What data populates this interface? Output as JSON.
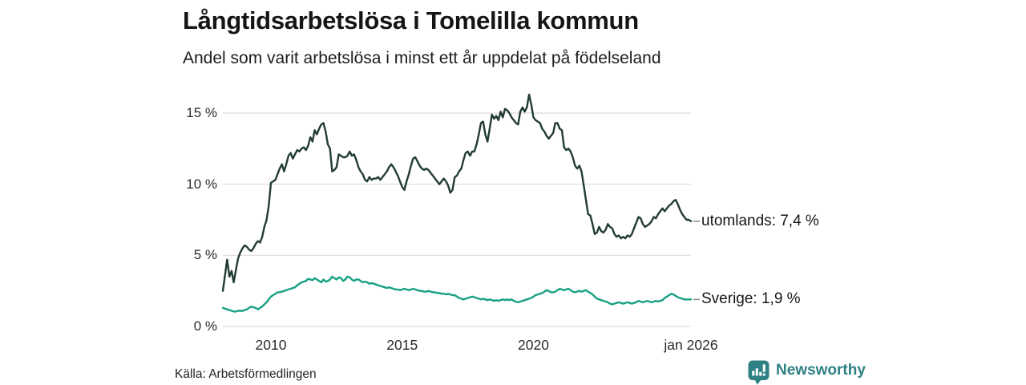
{
  "header": {
    "title": "Långtidsarbetslösa i Tomelilla kommun",
    "subtitle": "Andel som varit arbetslösa i minst ett år uppdelat på födelseland"
  },
  "footer": {
    "source": "Källa: Arbetsförmedlingen",
    "brand_name": "Newsworthy",
    "brand_color": "#2e8083",
    "brand_icon": "bar-chart-speech-bubble-icon"
  },
  "chart_data": {
    "type": "line",
    "title": "Långtidsarbetslösa i Tomelilla kommun",
    "subtitle": "Andel som varit arbetslösa i minst ett år uppdelat på födelseland",
    "grid": true,
    "grid_color": "#dcdcdc",
    "leader_dash_color": "#8f8f8f",
    "x_axis": {
      "range": [
        2008.167,
        2026.0
      ],
      "ticks": [
        {
          "label": "2010",
          "year": 2010.0
        },
        {
          "label": "2015",
          "year": 2015.0
        },
        {
          "label": "2020",
          "year": 2020.0
        },
        {
          "label": "jan 2026",
          "year": 2026.0
        }
      ]
    },
    "y_axis": {
      "unit": "%",
      "range": [
        0,
        16.5
      ],
      "ticks": [
        {
          "label": "15 %",
          "value": 15
        },
        {
          "label": "10 %",
          "value": 10
        },
        {
          "label": "5 %",
          "value": 5
        },
        {
          "label": "0 %",
          "value": 0
        }
      ]
    },
    "series": [
      {
        "name": "utomlands",
        "end_label": "utomlands: 7,4 %",
        "latest_value_text": "7,4 %",
        "color": "#223c35",
        "start_year": 2008.1667,
        "step_years": 0.0833333,
        "values": [
          2.5,
          3.6,
          4.7,
          3.5,
          3.9,
          3.1,
          4.0,
          4.8,
          5.2,
          5.5,
          5.7,
          5.6,
          5.4,
          5.3,
          5.5,
          5.8,
          6.0,
          5.9,
          6.3,
          7.0,
          7.5,
          8.5,
          10.1,
          10.2,
          10.3,
          10.7,
          11.1,
          11.4,
          10.9,
          11.4,
          12.0,
          12.2,
          11.8,
          12.1,
          12.4,
          12.3,
          12.5,
          12.6,
          12.4,
          12.7,
          13.3,
          13.0,
          13.8,
          13.5,
          13.9,
          14.2,
          14.3,
          13.7,
          12.8,
          12.5,
          10.9,
          11.0,
          11.2,
          12.1,
          12.0,
          11.9,
          11.9,
          12.0,
          12.3,
          12.0,
          12.1,
          11.7,
          11.2,
          10.9,
          10.7,
          10.3,
          10.2,
          10.5,
          10.3,
          10.4,
          10.4,
          10.5,
          10.3,
          10.5,
          10.7,
          10.9,
          11.2,
          11.4,
          11.2,
          10.9,
          10.6,
          10.2,
          9.8,
          9.6,
          10.2,
          10.7,
          11.3,
          11.8,
          11.9,
          11.6,
          11.3,
          11.1,
          11.0,
          11.1,
          11.0,
          10.8,
          10.6,
          10.4,
          10.2,
          10.0,
          10.2,
          10.4,
          10.2,
          9.9,
          9.4,
          9.6,
          10.5,
          10.6,
          10.9,
          11.1,
          11.7,
          12.2,
          12.3,
          12.0,
          12.3,
          12.3,
          12.8,
          13.5,
          14.3,
          14.4,
          13.5,
          13.0,
          13.9,
          14.9,
          14.6,
          14.8,
          14.5,
          15.1,
          14.7,
          15.3,
          15.2,
          15.0,
          14.7,
          14.5,
          14.3,
          14.2,
          15.1,
          15.4,
          15.1,
          15.4,
          16.3,
          15.6,
          14.7,
          14.5,
          14.4,
          14.3,
          13.9,
          13.7,
          13.4,
          13.2,
          13.4,
          13.6,
          14.3,
          14.3,
          13.9,
          13.8,
          12.6,
          12.4,
          12.5,
          12.3,
          11.9,
          11.3,
          11.1,
          11.3,
          10.9,
          9.9,
          8.9,
          7.9,
          7.8,
          7.2,
          6.5,
          6.6,
          7.0,
          6.7,
          6.6,
          6.8,
          7.2,
          7.0,
          6.9,
          6.5,
          6.3,
          6.4,
          6.2,
          6.3,
          6.2,
          6.4,
          6.3,
          6.5,
          6.9,
          7.3,
          7.7,
          7.6,
          7.2,
          7.0,
          7.1,
          7.2,
          7.4,
          7.7,
          7.6,
          7.9,
          8.1,
          8.3,
          8.1,
          8.3,
          8.5,
          8.6,
          8.8,
          8.9,
          8.6,
          8.2,
          7.9,
          7.7,
          7.5,
          7.5,
          7.4
        ]
      },
      {
        "name": "Sverige",
        "end_label": "Sverige: 1,9 %",
        "latest_value_text": "1,9 %",
        "color": "#18a183",
        "start_year": 2008.1667,
        "step_years": 0.0833333,
        "values": [
          1.3,
          1.25,
          1.2,
          1.15,
          1.1,
          1.05,
          1.05,
          1.1,
          1.1,
          1.1,
          1.15,
          1.2,
          1.3,
          1.4,
          1.35,
          1.3,
          1.2,
          1.3,
          1.4,
          1.55,
          1.7,
          1.9,
          2.1,
          2.2,
          2.3,
          2.4,
          2.4,
          2.45,
          2.5,
          2.55,
          2.6,
          2.65,
          2.7,
          2.75,
          2.9,
          3.0,
          3.1,
          3.15,
          3.2,
          3.35,
          3.3,
          3.25,
          3.4,
          3.3,
          3.2,
          3.1,
          3.3,
          3.15,
          3.2,
          3.3,
          3.5,
          3.4,
          3.3,
          3.45,
          3.4,
          3.2,
          3.3,
          3.5,
          3.45,
          3.3,
          3.2,
          3.3,
          3.3,
          3.2,
          3.1,
          3.15,
          3.1,
          3.0,
          3.05,
          3.0,
          2.95,
          2.9,
          2.85,
          2.8,
          2.75,
          2.7,
          2.75,
          2.7,
          2.65,
          2.6,
          2.6,
          2.55,
          2.6,
          2.65,
          2.6,
          2.55,
          2.6,
          2.65,
          2.6,
          2.55,
          2.5,
          2.5,
          2.45,
          2.45,
          2.5,
          2.45,
          2.4,
          2.4,
          2.35,
          2.35,
          2.3,
          2.3,
          2.25,
          2.3,
          2.25,
          2.2,
          2.2,
          2.1,
          2.0,
          1.95,
          1.9,
          1.95,
          2.0,
          2.05,
          2.1,
          2.05,
          2.0,
          1.95,
          1.9,
          1.95,
          1.9,
          1.85,
          1.9,
          1.85,
          1.8,
          1.85,
          1.8,
          1.85,
          1.9,
          1.85,
          1.9,
          1.85,
          1.9,
          1.8,
          1.75,
          1.7,
          1.75,
          1.8,
          1.85,
          1.9,
          1.95,
          2.0,
          2.1,
          2.2,
          2.25,
          2.3,
          2.35,
          2.45,
          2.55,
          2.5,
          2.4,
          2.4,
          2.45,
          2.55,
          2.65,
          2.6,
          2.55,
          2.6,
          2.65,
          2.55,
          2.45,
          2.4,
          2.45,
          2.5,
          2.45,
          2.5,
          2.55,
          2.45,
          2.35,
          2.25,
          2.1,
          1.95,
          1.9,
          1.85,
          1.8,
          1.75,
          1.7,
          1.6,
          1.55,
          1.6,
          1.65,
          1.7,
          1.65,
          1.6,
          1.65,
          1.7,
          1.65,
          1.6,
          1.65,
          1.7,
          1.8,
          1.75,
          1.7,
          1.75,
          1.8,
          1.75,
          1.7,
          1.75,
          1.8,
          1.75,
          1.8,
          1.85,
          2.0,
          2.1,
          2.2,
          2.3,
          2.25,
          2.15,
          2.05,
          2.0,
          1.95,
          1.9,
          1.9,
          1.9,
          1.9
        ]
      }
    ]
  }
}
